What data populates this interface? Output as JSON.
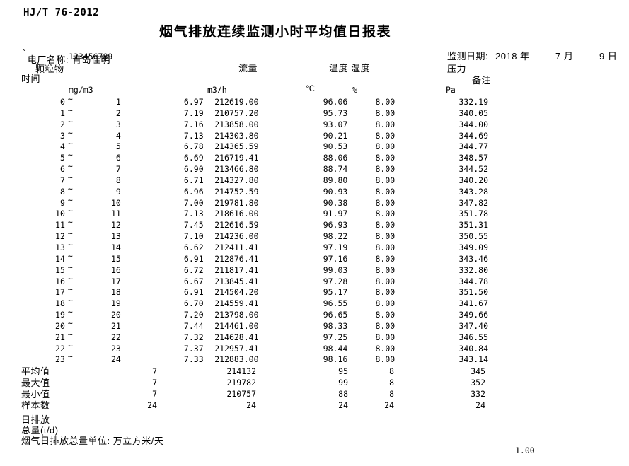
{
  "meta": {
    "standard": "HJ/T 76-2012",
    "title": "烟气排放连续监测小时平均值日报表"
  },
  "header": {
    "plant_label": "电厂名称:",
    "plant_name": "青岛佳明",
    "stray_mark": "`",
    "plant_code": "123456789",
    "date_label": "监测日期:",
    "date_year": "2018 年",
    "date_month": "7 月",
    "date_day": "9 日"
  },
  "columns": {
    "time_label": "时间",
    "particulate_label": "颗粒物",
    "flow_label": "流量",
    "temp_hum_label": "温度 湿度",
    "pressure_label": "压力",
    "remark_label": "备注",
    "unit_particulate": "mg/m3",
    "unit_flow": "m3/h",
    "unit_temp": "℃",
    "unit_hum": "%",
    "unit_pressure": "Pa"
  },
  "table": {
    "tilde": "~",
    "rows": [
      {
        "h1": "0",
        "h2": "1",
        "pm": "6.97",
        "flow": "212619.00",
        "temp": "96.06",
        "hum": "8.00",
        "press": "332.19"
      },
      {
        "h1": "1",
        "h2": "2",
        "pm": "7.19",
        "flow": "210757.20",
        "temp": "95.73",
        "hum": "8.00",
        "press": "340.05"
      },
      {
        "h1": "2",
        "h2": "3",
        "pm": "7.16",
        "flow": "213858.00",
        "temp": "93.07",
        "hum": "8.00",
        "press": "344.00"
      },
      {
        "h1": "3",
        "h2": "4",
        "pm": "7.13",
        "flow": "214303.80",
        "temp": "90.21",
        "hum": "8.00",
        "press": "344.69"
      },
      {
        "h1": "4",
        "h2": "5",
        "pm": "6.78",
        "flow": "214365.59",
        "temp": "90.53",
        "hum": "8.00",
        "press": "344.77"
      },
      {
        "h1": "5",
        "h2": "6",
        "pm": "6.69",
        "flow": "216719.41",
        "temp": "88.06",
        "hum": "8.00",
        "press": "348.57"
      },
      {
        "h1": "6",
        "h2": "7",
        "pm": "6.90",
        "flow": "213466.80",
        "temp": "88.74",
        "hum": "8.00",
        "press": "344.52"
      },
      {
        "h1": "7",
        "h2": "8",
        "pm": "6.71",
        "flow": "214327.80",
        "temp": "89.80",
        "hum": "8.00",
        "press": "340.20"
      },
      {
        "h1": "8",
        "h2": "9",
        "pm": "6.96",
        "flow": "214752.59",
        "temp": "90.93",
        "hum": "8.00",
        "press": "343.28"
      },
      {
        "h1": "9",
        "h2": "10",
        "pm": "7.00",
        "flow": "219781.80",
        "temp": "90.38",
        "hum": "8.00",
        "press": "347.82"
      },
      {
        "h1": "10",
        "h2": "11",
        "pm": "7.13",
        "flow": "218616.00",
        "temp": "91.97",
        "hum": "8.00",
        "press": "351.78"
      },
      {
        "h1": "11",
        "h2": "12",
        "pm": "7.45",
        "flow": "212616.59",
        "temp": "96.93",
        "hum": "8.00",
        "press": "351.31"
      },
      {
        "h1": "12",
        "h2": "13",
        "pm": "7.10",
        "flow": "214236.00",
        "temp": "98.22",
        "hum": "8.00",
        "press": "350.55"
      },
      {
        "h1": "13",
        "h2": "14",
        "pm": "6.62",
        "flow": "212411.41",
        "temp": "97.19",
        "hum": "8.00",
        "press": "349.09"
      },
      {
        "h1": "14",
        "h2": "15",
        "pm": "6.91",
        "flow": "212876.41",
        "temp": "97.16",
        "hum": "8.00",
        "press": "343.46"
      },
      {
        "h1": "15",
        "h2": "16",
        "pm": "6.72",
        "flow": "211817.41",
        "temp": "99.03",
        "hum": "8.00",
        "press": "332.80"
      },
      {
        "h1": "16",
        "h2": "17",
        "pm": "6.67",
        "flow": "213845.41",
        "temp": "97.28",
        "hum": "8.00",
        "press": "344.78"
      },
      {
        "h1": "17",
        "h2": "18",
        "pm": "6.91",
        "flow": "214504.20",
        "temp": "95.17",
        "hum": "8.00",
        "press": "351.50"
      },
      {
        "h1": "18",
        "h2": "19",
        "pm": "6.70",
        "flow": "214559.41",
        "temp": "96.55",
        "hum": "8.00",
        "press": "341.67"
      },
      {
        "h1": "19",
        "h2": "20",
        "pm": "7.20",
        "flow": "213798.00",
        "temp": "96.65",
        "hum": "8.00",
        "press": "349.66"
      },
      {
        "h1": "20",
        "h2": "21",
        "pm": "7.44",
        "flow": "214461.00",
        "temp": "98.33",
        "hum": "8.00",
        "press": "347.40"
      },
      {
        "h1": "21",
        "h2": "22",
        "pm": "7.32",
        "flow": "214628.41",
        "temp": "97.25",
        "hum": "8.00",
        "press": "346.55"
      },
      {
        "h1": "22",
        "h2": "23",
        "pm": "7.37",
        "flow": "212957.41",
        "temp": "98.44",
        "hum": "8.00",
        "press": "340.84"
      },
      {
        "h1": "23",
        "h2": "24",
        "pm": "7.33",
        "flow": "212883.00",
        "temp": "98.16",
        "hum": "8.00",
        "press": "343.14"
      }
    ]
  },
  "summary": {
    "rows": [
      {
        "label": "平均值",
        "values": [
          "7",
          "214132",
          "95",
          "8",
          "345"
        ]
      },
      {
        "label": "最大值",
        "values": [
          "7",
          "219782",
          "99",
          "8",
          "352"
        ]
      },
      {
        "label": "最小值",
        "values": [
          "7",
          "210757",
          "88",
          "8",
          "332"
        ]
      },
      {
        "label": "样本数",
        "values": [
          "24",
          "24",
          "24",
          "24",
          "24"
        ]
      }
    ]
  },
  "footer": {
    "daily_emission_label": "日排放",
    "total_label": "总量(t/d)",
    "unit_note": "烟气日排放总量单位: 万立方米/天",
    "page_value": "1.00"
  }
}
